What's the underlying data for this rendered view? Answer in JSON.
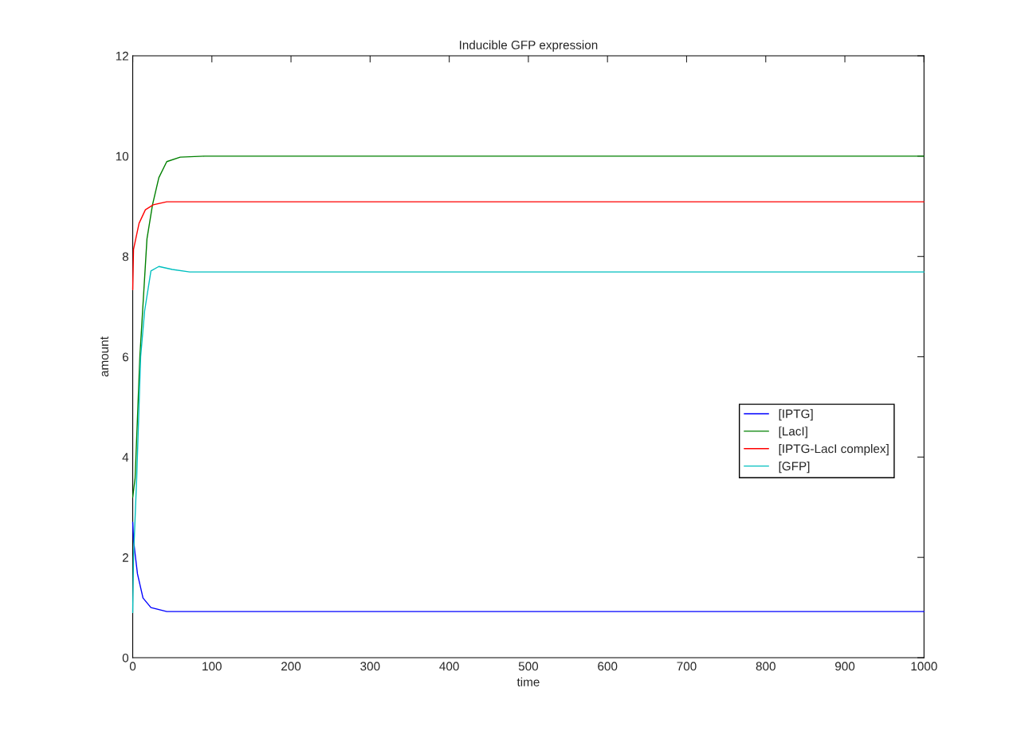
{
  "chart_data": {
    "type": "line",
    "title": "Inducible GFP expression",
    "xlabel": "time",
    "ylabel": "amount",
    "xlim": [
      0,
      1000
    ],
    "ylim": [
      0,
      12
    ],
    "xticks": [
      0,
      100,
      200,
      300,
      400,
      500,
      600,
      700,
      800,
      900,
      1000
    ],
    "yticks": [
      0,
      2,
      4,
      6,
      8,
      10,
      12
    ],
    "grid": false,
    "legend": "right",
    "marker": "none",
    "line_style": "solid",
    "series": [
      {
        "name": "[IPTG]",
        "color": "#0000ff",
        "x": [
          0,
          1,
          3,
          6,
          13,
          23,
          43,
          1000
        ],
        "values": [
          2.7,
          2.35,
          2.07,
          1.67,
          1.19,
          1.0,
          0.92,
          0.92
        ]
      },
      {
        "name": "[LacI]",
        "color": "#008000",
        "x": [
          0,
          3,
          9,
          18,
          25,
          33,
          43,
          60,
          91,
          1000
        ],
        "values": [
          3.2,
          3.58,
          6.0,
          8.35,
          9.03,
          9.57,
          9.89,
          9.98,
          10.0,
          10.0
        ]
      },
      {
        "name": "[IPTG-LacI complex]",
        "color": "#ff0000",
        "x": [
          0,
          1,
          8,
          16,
          26,
          43,
          1000
        ],
        "values": [
          7.34,
          8.14,
          8.66,
          8.93,
          9.03,
          9.09,
          9.09
        ]
      },
      {
        "name": "[GFP]",
        "color": "#00bfbf",
        "x": [
          0,
          1,
          5,
          10,
          15,
          23,
          33,
          50,
          72,
          1000
        ],
        "values": [
          0.9,
          2.0,
          3.58,
          6.0,
          6.91,
          7.71,
          7.8,
          7.74,
          7.69,
          7.69
        ]
      }
    ]
  }
}
